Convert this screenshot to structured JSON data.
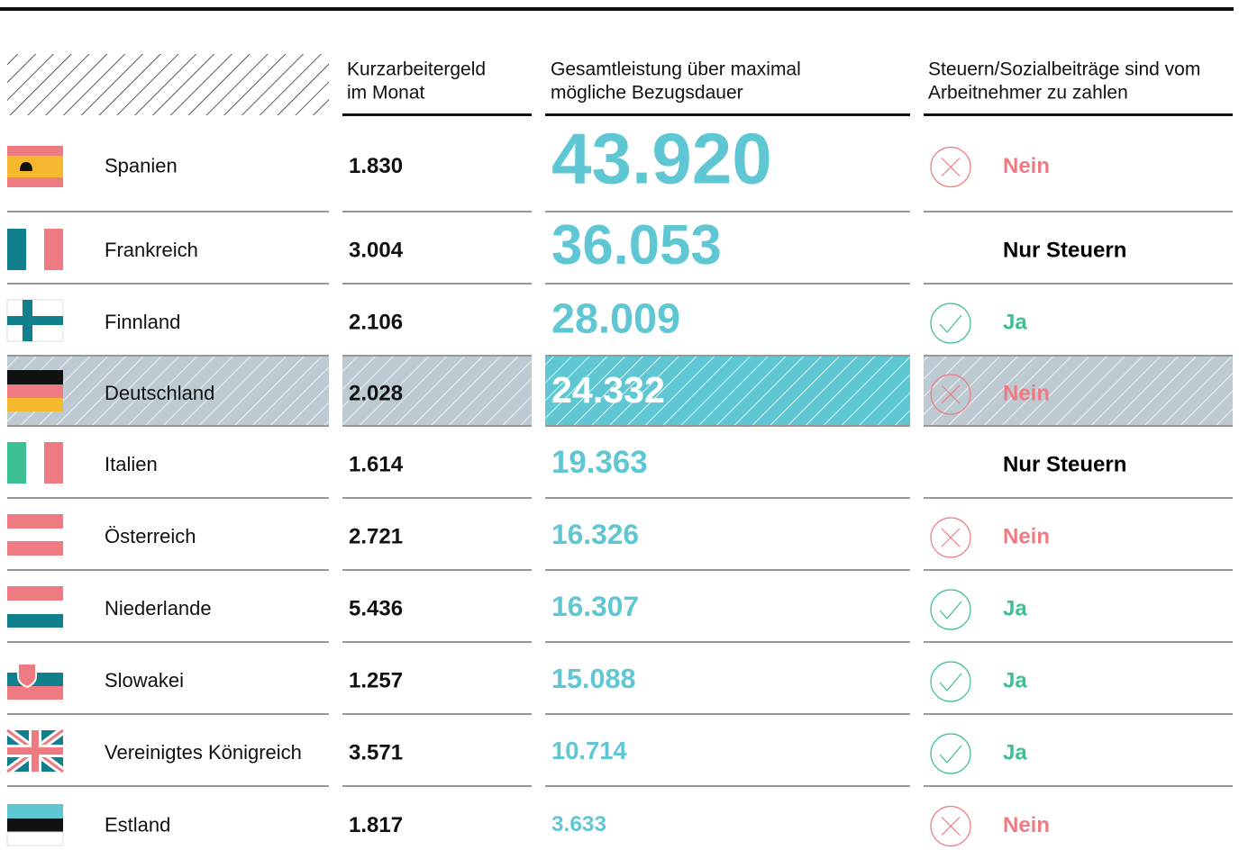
{
  "table": {
    "header": [
      [
        "Kurzarbeitergeld",
        "im Monat"
      ],
      [
        "Gesamtleistung über maximal",
        "mögliche Bezugsdauer"
      ],
      [
        "Steuern/Sozialbeiträge sind vom",
        "Arbeitnehmer zu zahlen"
      ]
    ],
    "rows": [
      [
        "Spanien",
        "1.830",
        "43.920",
        "Nein"
      ],
      [
        "Frankreich",
        "3.004",
        "36.053",
        "Nur Steuern"
      ],
      [
        "Finnland",
        "2.106",
        "28.009",
        "Ja"
      ],
      [
        "Deutschland",
        "2.028",
        "24.332",
        "Nein"
      ],
      [
        "Italien",
        "1.614",
        "19.363",
        "Nur Steuern"
      ],
      [
        "Österreich",
        "2.721",
        "16.326",
        "Nein"
      ],
      [
        "Niederlande",
        "5.436",
        "16.307",
        "Ja"
      ],
      [
        "Slowakei",
        "1.257",
        "15.088",
        "Ja"
      ],
      [
        "Vereinigtes Königreich",
        "3.571",
        "10.714",
        "Ja"
      ],
      [
        "Estland",
        "1.817",
        "3.633",
        "Nein"
      ]
    ],
    "highlight": "Deutschland",
    "total_color": "#5fc7d3",
    "answer_colors": {
      "Nein": "#ef7b82",
      "Ja": "#3dbf94",
      "Nur Steuern": "#000000"
    },
    "answer_icons": {
      "Nein": "cross",
      "Ja": "check"
    }
  }
}
